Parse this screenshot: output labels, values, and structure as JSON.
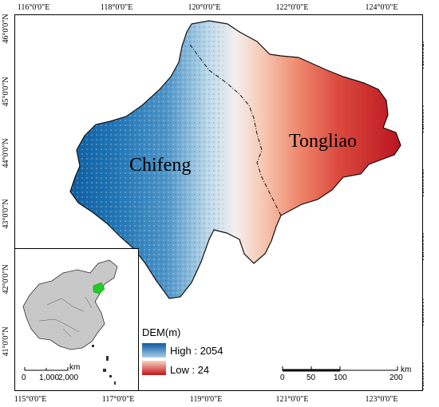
{
  "axes": {
    "top_ticks": [
      "116°0'0\"E",
      "118°0'0\"E",
      "120°0'0\"E",
      "122°0'0\"E",
      "124°0'0\"E"
    ],
    "bottom_ticks": [
      "115°0'0\"E",
      "117°0'0\"E",
      "119°0'0\"E",
      "121°0'0\"E",
      "123°0'0\"E"
    ],
    "left_ticks": [
      "46°0'0\"N",
      "45°0'0\"N",
      "44°0'0\"N",
      "43°0'0\"N",
      "42°0'0\"N",
      "41°0'0\"N"
    ],
    "right_ticks": [
      "45°0'0\"N",
      "44°0'0\"N",
      "43°0'0\"N",
      "42°0'0\"N",
      "41°0'0\"N",
      "40°0'0\"N"
    ]
  },
  "regions": {
    "west": "Chifeng",
    "east": "Tongliao"
  },
  "legend": {
    "title": "DEM(m)",
    "high": "High : 2054",
    "low": "Low : 24",
    "colors": {
      "high_dark": "#0b5aa0",
      "high_light": "#a9cde8",
      "low_light": "#fbd2c0",
      "low_dark": "#c0151b"
    }
  },
  "inset": {
    "scale_labels": [
      "0",
      "1,000",
      "2,000"
    ],
    "scale_unit": "km",
    "country_fill": "#c8c8c8",
    "highlight_fill": "#22cc22"
  },
  "scalebar": {
    "labels": [
      "0",
      "50",
      "100",
      "200"
    ],
    "unit": "km"
  }
}
